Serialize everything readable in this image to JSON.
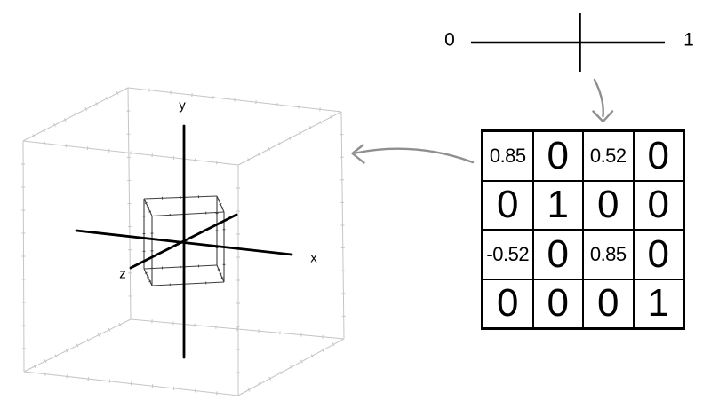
{
  "colors": {
    "wire": "#c5c5c5",
    "cube": "#3e3e3e",
    "axis": "#000000",
    "line": "#000000",
    "arrow": "#8f8f8f",
    "text": "#000000"
  },
  "scene3d": {
    "x_label": "x",
    "y_label": "y",
    "z_label": "z"
  },
  "number_line": {
    "min_label": "0",
    "max_label": "1"
  },
  "matrix": {
    "rows": [
      [
        "0.85",
        "0",
        "0.52",
        "0"
      ],
      [
        "0",
        "1",
        "0",
        "0"
      ],
      [
        "-0.52",
        "0",
        "0.85",
        "0"
      ],
      [
        "0",
        "0",
        "0",
        "1"
      ]
    ]
  }
}
